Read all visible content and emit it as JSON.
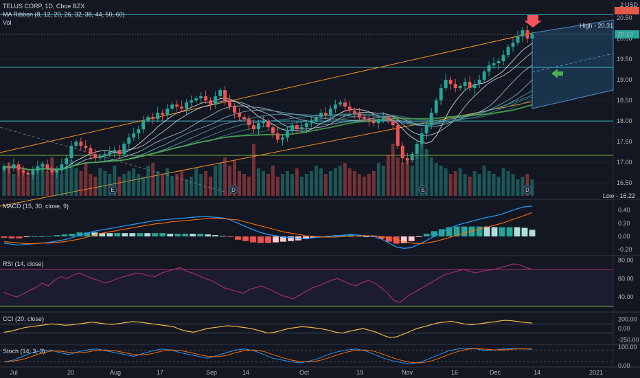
{
  "legend": {
    "symbol": "TELUS CORP, 1D, Cboe BZX",
    "ribbon": "MA Ribbon (8, 12, 20, 26, 32, 38, 44, 50, 60)",
    "vol": "Vol",
    "macd": "MACD (15, 30, close, 9)",
    "rsi": "RSI (14, close)",
    "cci": "CCI (20, close)",
    "stoch": "Stoch (14, 3, 3)"
  },
  "currency_label": "USD",
  "high_label": "High",
  "low_label": "Low",
  "colors": {
    "background": "#131722",
    "up": "#26a69a",
    "down": "#ef5350",
    "channel": "#f7931a",
    "hline": "#3bb3c4",
    "hline_green": "#7cb342",
    "projection_fill": "#1f4a6e",
    "macd_line": "#2196f3",
    "signal_line": "#ff6d00",
    "rsi": "#a32d6e",
    "cci": "#f5b942",
    "stoch_k": "#2196f3",
    "stoch_d": "#ff6d00"
  },
  "chart_data": [
    {
      "type": "candlestick",
      "y_ticks": [
        "20.50",
        "20.00",
        "19.50",
        "19.00",
        "18.50",
        "18.00",
        "17.50",
        "17.00",
        "16.50"
      ],
      "ylim": [
        16.22,
        20.6
      ],
      "x_ticks": [
        "Jul",
        "20",
        "Aug",
        "17",
        "Sep",
        "14",
        "Oct",
        "19",
        "Nov",
        "16",
        "Dec",
        "14",
        "2021"
      ],
      "last_price": "20.10",
      "high": "20.31",
      "low": "16.22",
      "top_tick": "2",
      "horizontal_levels": [
        20.58,
        20.1,
        19.3,
        18.0,
        17.17
      ],
      "earnings_markers": [
        "E",
        "D",
        "E",
        "D"
      ],
      "close": [
        16.9,
        16.85,
        16.95,
        16.8,
        16.75,
        16.7,
        16.8,
        16.9,
        16.95,
        16.85,
        16.75,
        16.8,
        16.95,
        17.1,
        17.4,
        17.5,
        17.4,
        17.35,
        17.2,
        17.1,
        17.15,
        17.2,
        17.25,
        17.3,
        17.2,
        17.45,
        17.6,
        17.7,
        17.8,
        18.0,
        18.1,
        18.05,
        18.2,
        18.15,
        18.3,
        18.4,
        18.35,
        18.3,
        18.45,
        18.5,
        18.55,
        18.6,
        18.5,
        18.4,
        18.6,
        18.75,
        18.5,
        18.35,
        18.2,
        18.1,
        18.05,
        17.9,
        17.8,
        17.95,
        18.0,
        17.85,
        17.7,
        17.55,
        17.6,
        17.75,
        17.9,
        17.8,
        17.85,
        17.95,
        18.0,
        18.1,
        18.2,
        18.15,
        18.3,
        18.4,
        18.45,
        18.35,
        18.25,
        18.2,
        18.1,
        18.05,
        18.0,
        17.95,
        18.05,
        18.1,
        18.0,
        17.9,
        17.4,
        17.1,
        17.05,
        17.2,
        17.45,
        17.7,
        17.9,
        18.2,
        18.5,
        18.8,
        19.0,
        18.9,
        18.8,
        18.85,
        18.95,
        18.8,
        18.9,
        19.0,
        19.2,
        19.35,
        19.4,
        19.45,
        19.6,
        19.8,
        19.9,
        20.05,
        20.2,
        20.0,
        20.1
      ],
      "volume": [
        0.55,
        0.6,
        0.4,
        0.45,
        0.5,
        0.35,
        0.4,
        0.55,
        0.6,
        0.45,
        0.7,
        0.5,
        0.4,
        0.55,
        0.65,
        0.5,
        0.45,
        0.6,
        0.4,
        0.35,
        0.5,
        0.45,
        0.4,
        0.55,
        0.35,
        0.4,
        0.45,
        0.5,
        0.4,
        0.35,
        0.55,
        0.6,
        0.45,
        0.4,
        0.5,
        0.35,
        0.4,
        0.45,
        0.3,
        0.35,
        0.5,
        0.4,
        0.45,
        0.35,
        0.55,
        0.6,
        0.7,
        0.55,
        0.65,
        0.45,
        0.4,
        0.35,
        0.95,
        0.5,
        0.45,
        0.4,
        0.55,
        0.35,
        0.4,
        0.45,
        0.4,
        0.5,
        0.35,
        0.4,
        0.45,
        0.55,
        0.5,
        0.4,
        0.45,
        0.5,
        0.55,
        0.6,
        0.5,
        0.45,
        0.4,
        0.35,
        0.4,
        0.45,
        0.6,
        0.55,
        0.75,
        0.95,
        0.7,
        0.6,
        0.65,
        0.55,
        0.75,
        0.95,
        0.85,
        0.7,
        0.6,
        0.55,
        0.5,
        0.4,
        0.45,
        0.5,
        0.4,
        0.35,
        0.45,
        0.4,
        0.55,
        0.45,
        0.4,
        0.35,
        0.5,
        0.45,
        0.4,
        0.3,
        0.35,
        0.4,
        0.3
      ]
    },
    {
      "type": "bar",
      "title": "MACD (15, 30, close, 9)",
      "y_ticks": [
        "0.40",
        "0.20",
        "0.00",
        "-0.20"
      ],
      "ylim": [
        -0.25,
        0.5
      ],
      "macd_line": [
        -0.1,
        -0.12,
        -0.13,
        -0.12,
        -0.11,
        -0.1,
        -0.09,
        -0.07,
        -0.05,
        -0.02,
        0.02,
        0.05,
        0.08,
        0.1,
        0.12,
        0.14,
        0.16,
        0.18,
        0.2,
        0.22,
        0.24,
        0.25,
        0.26,
        0.27,
        0.28,
        0.29,
        0.3,
        0.3,
        0.29,
        0.28,
        0.25,
        0.2,
        0.15,
        0.1,
        0.06,
        0.03,
        0.01,
        -0.01,
        -0.02,
        -0.03,
        -0.03,
        -0.02,
        -0.01,
        0.0,
        0.01,
        0.02,
        0.03,
        0.02,
        0.01,
        0.0,
        -0.04,
        -0.1,
        -0.16,
        -0.18,
        -0.17,
        -0.12,
        -0.06,
        0.0,
        0.06,
        0.12,
        0.17,
        0.2,
        0.23,
        0.26,
        0.29,
        0.31,
        0.34,
        0.38,
        0.42,
        0.45,
        0.46
      ],
      "signal_line": [
        -0.08,
        -0.09,
        -0.1,
        -0.11,
        -0.11,
        -0.1,
        -0.1,
        -0.09,
        -0.08,
        -0.06,
        -0.04,
        -0.01,
        0.02,
        0.05,
        0.07,
        0.09,
        0.11,
        0.13,
        0.15,
        0.17,
        0.19,
        0.2,
        0.22,
        0.23,
        0.24,
        0.25,
        0.26,
        0.27,
        0.27,
        0.27,
        0.26,
        0.25,
        0.22,
        0.19,
        0.16,
        0.13,
        0.1,
        0.07,
        0.05,
        0.03,
        0.01,
        0.0,
        -0.01,
        -0.01,
        -0.01,
        0.0,
        0.0,
        0.01,
        0.01,
        0.01,
        0.0,
        -0.02,
        -0.05,
        -0.08,
        -0.1,
        -0.11,
        -0.1,
        -0.08,
        -0.05,
        -0.02,
        0.02,
        0.05,
        0.08,
        0.11,
        0.14,
        0.17,
        0.2,
        0.24,
        0.28,
        0.32,
        0.36
      ]
    },
    {
      "type": "line",
      "title": "RSI (14, close)",
      "y_ticks": [
        "80.00",
        "60.00",
        "40.00"
      ],
      "ylim": [
        25,
        82
      ],
      "values": [
        45,
        42,
        40,
        43,
        47,
        50,
        55,
        52,
        58,
        62,
        60,
        64,
        66,
        63,
        60,
        58,
        55,
        57,
        60,
        62,
        64,
        66,
        65,
        63,
        62,
        66,
        68,
        70,
        72,
        68,
        66,
        63,
        60,
        58,
        54,
        50,
        48,
        46,
        44,
        48,
        50,
        52,
        49,
        46,
        42,
        40,
        38,
        42,
        46,
        50,
        52,
        55,
        58,
        60,
        57,
        54,
        52,
        56,
        58,
        55,
        50,
        44,
        36,
        34,
        40,
        44,
        48,
        52,
        56,
        60,
        64,
        66,
        68,
        70,
        68,
        66,
        68,
        69,
        70,
        72,
        74,
        76,
        75,
        72,
        70
      ]
    },
    {
      "type": "line",
      "title": "CCI (20, close)",
      "y_ticks": [
        "200.00",
        "0.00",
        "-250.00"
      ],
      "ylim": [
        -300,
        300
      ],
      "values": [
        -80,
        -60,
        -20,
        20,
        40,
        60,
        80,
        100,
        90,
        70,
        80,
        100,
        120,
        140,
        120,
        100,
        90,
        110,
        130,
        150,
        140,
        120,
        100,
        80,
        60,
        40,
        -20,
        -60,
        -80,
        -40,
        0,
        20,
        40,
        60,
        50,
        30,
        10,
        -20,
        -60,
        -100,
        -80,
        -40,
        0,
        20,
        40,
        30,
        10,
        -10,
        -40,
        -80,
        -100,
        -60,
        -30,
        0,
        -40,
        -80,
        -150,
        -200,
        -180,
        -120,
        -60,
        0,
        40,
        80,
        120,
        140,
        160,
        130,
        100,
        80,
        100,
        120,
        140,
        160,
        180,
        170,
        150,
        130,
        120
      ]
    },
    {
      "type": "line",
      "title": "Stoch (14, 3, 3)",
      "y_ticks": [
        "100.00",
        "0.00"
      ],
      "ylim": [
        0,
        100
      ],
      "k_values": [
        20,
        30,
        50,
        70,
        80,
        85,
        70,
        60,
        75,
        85,
        90,
        80,
        70,
        60,
        50,
        65,
        80,
        90,
        85,
        70,
        60,
        50,
        40,
        55,
        70,
        85,
        90,
        80,
        60,
        40,
        30,
        20,
        15,
        25,
        40,
        60,
        75,
        85,
        90,
        80,
        60,
        40,
        25,
        15,
        10,
        20,
        40,
        60,
        80,
        90,
        95,
        90,
        80,
        85,
        90,
        92,
        90,
        88
      ]
    }
  ]
}
